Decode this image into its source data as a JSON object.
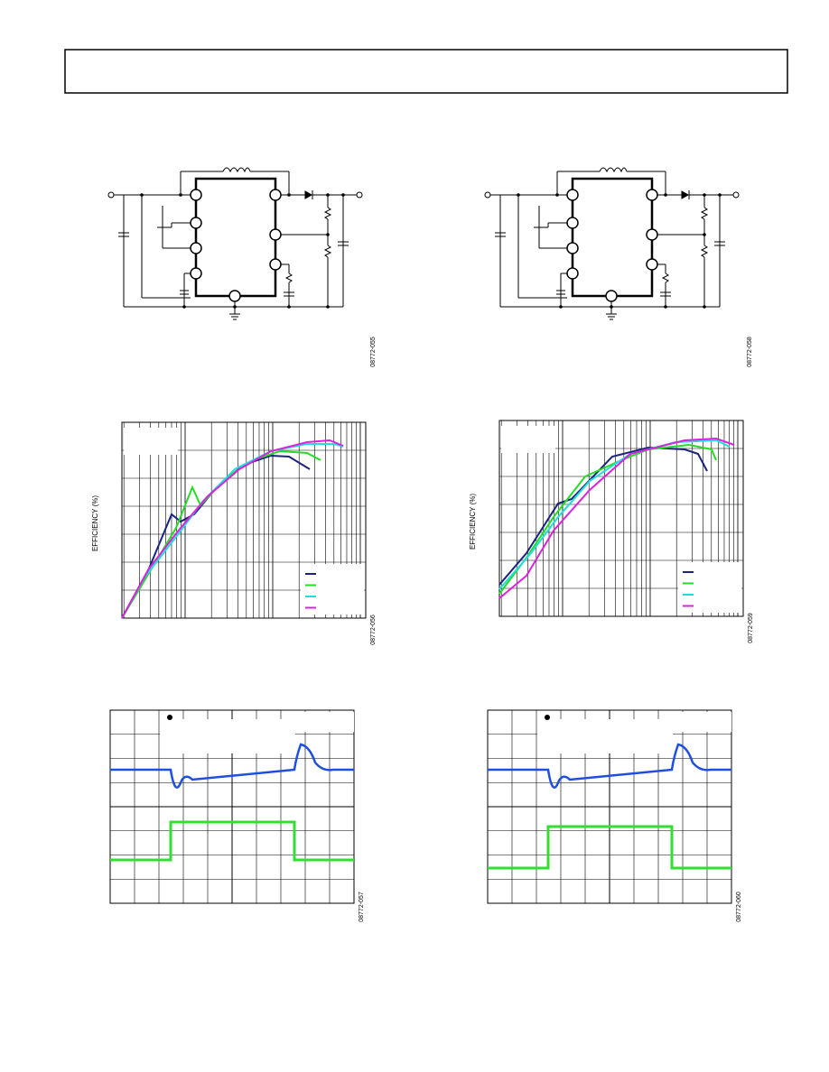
{
  "schematics": [
    {
      "code": "08772-055"
    },
    {
      "code": "08772-058"
    }
  ],
  "efficiency_plots": [
    {
      "y_label": "EFFICIENCY (%)",
      "code": "08772-056"
    },
    {
      "y_label": "EFFICIENCY (%)",
      "code": "08772-059"
    }
  ],
  "scope_plots": [
    {
      "code": "08772-057"
    },
    {
      "code": "08772-060"
    }
  ]
}
